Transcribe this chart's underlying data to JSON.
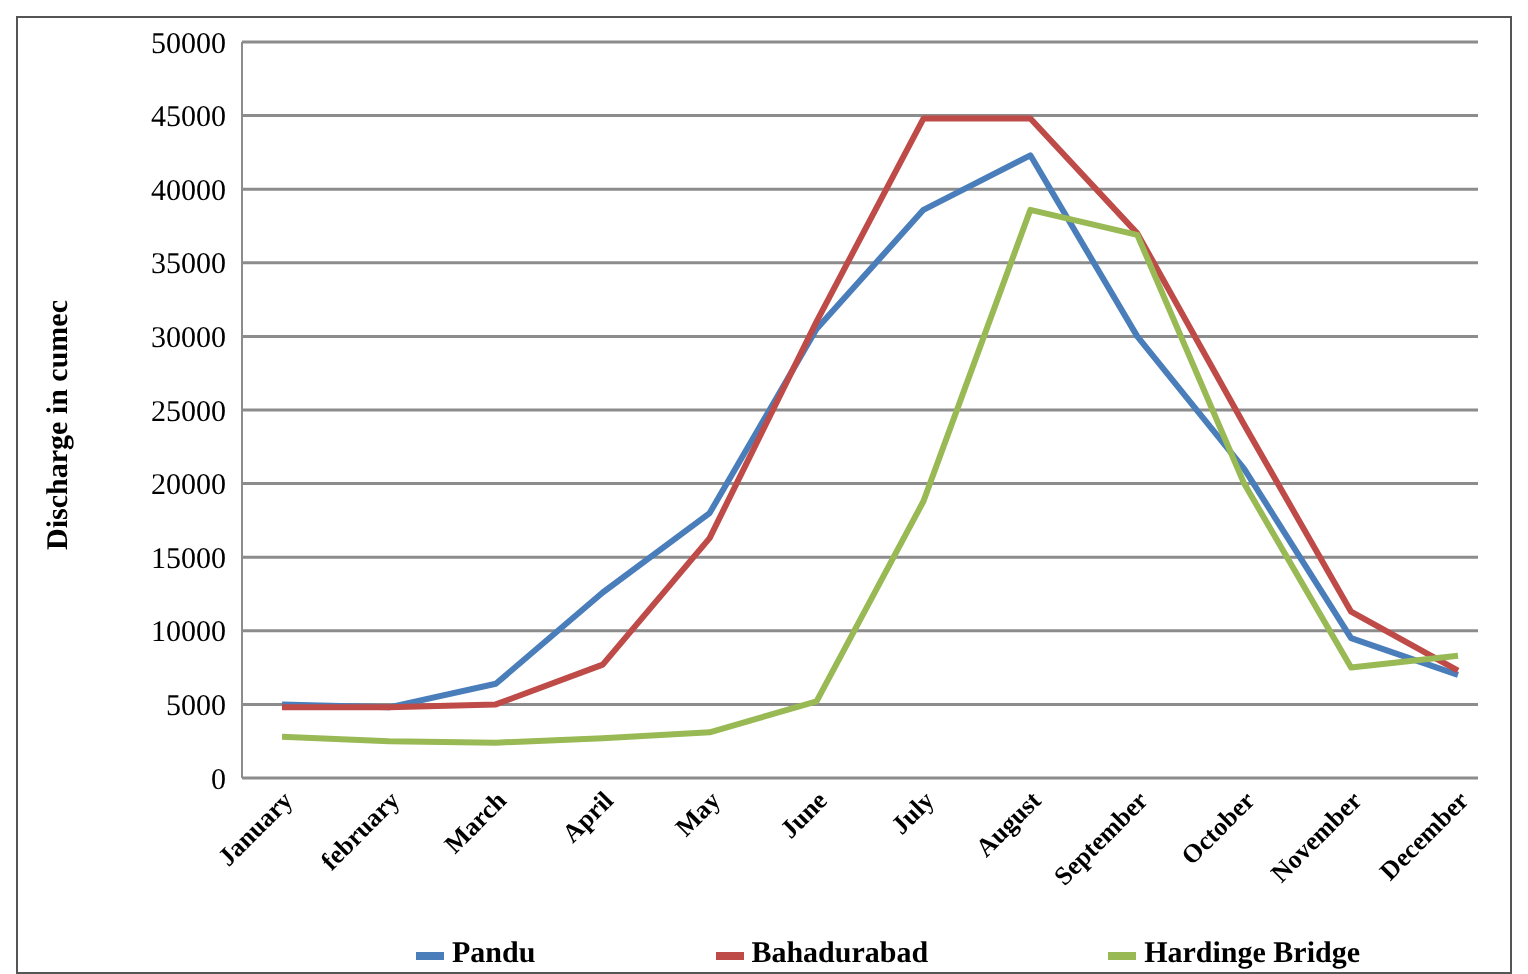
{
  "chart_data": {
    "type": "line",
    "ylabel": "Discharge in cumec",
    "categories": [
      "January",
      "february",
      "March",
      "April",
      "May",
      "June",
      "July",
      "August",
      "September",
      "October",
      "November",
      "December"
    ],
    "series": [
      {
        "name": "Pandu",
        "color": "#4a7ebb",
        "values": [
          5000,
          4800,
          6400,
          12600,
          18000,
          30500,
          38600,
          42300,
          30000,
          21000,
          9500,
          7000
        ]
      },
      {
        "name": "Bahadurabad",
        "color": "#be4b48",
        "values": [
          4800,
          4800,
          5000,
          7700,
          16300,
          31000,
          44800,
          44800,
          37000,
          24000,
          11300,
          7300
        ]
      },
      {
        "name": "Hardinge Bridge",
        "color": "#98b954",
        "values": [
          2800,
          2500,
          2400,
          2700,
          3100,
          5200,
          18800,
          38600,
          36900,
          20000,
          7500,
          8300
        ]
      }
    ],
    "ylim": [
      0,
      50000
    ],
    "yticks": [
      0,
      5000,
      10000,
      15000,
      20000,
      25000,
      30000,
      35000,
      40000,
      45000,
      50000
    ],
    "grid": "y",
    "legend": "bottom",
    "marker": "none",
    "line_style": "solid"
  }
}
